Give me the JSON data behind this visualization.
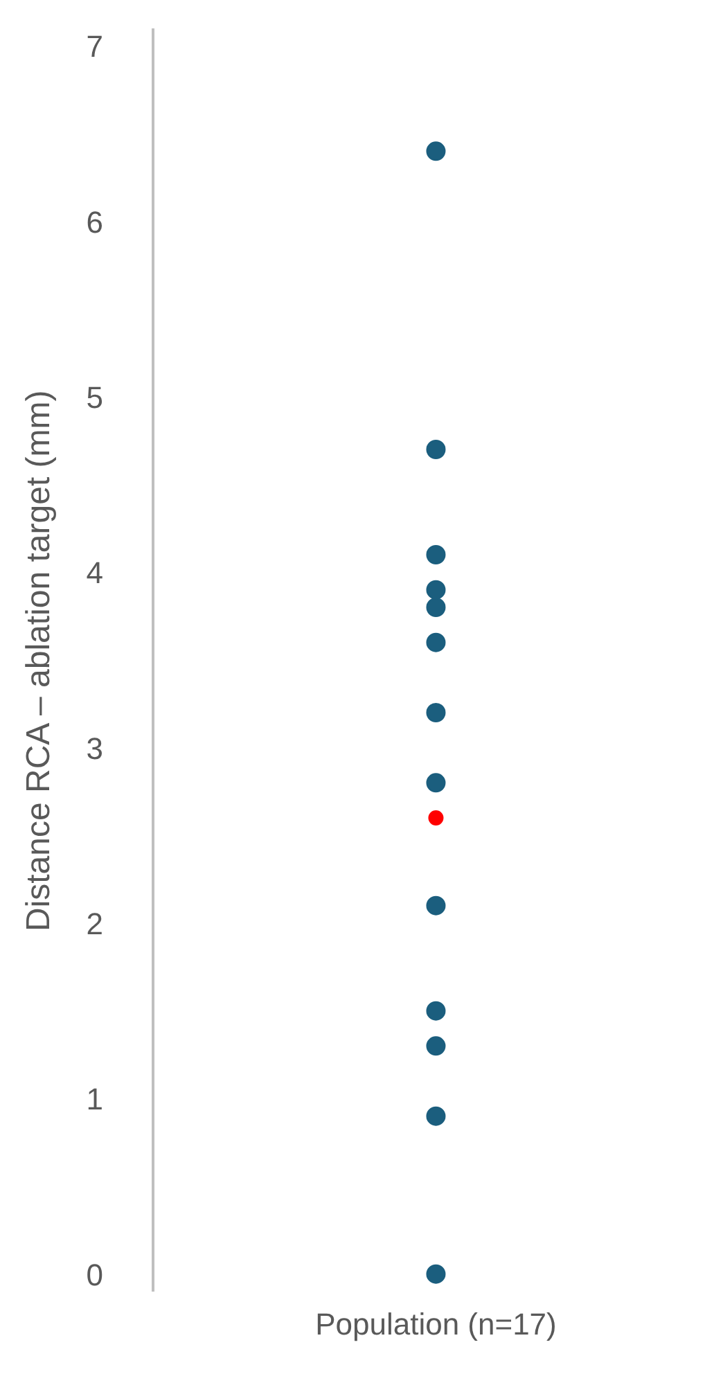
{
  "chart_data": {
    "type": "scatter",
    "ylabel": "Distance RCA – ablation target (mm)",
    "categories": [
      "Population (n=17)"
    ],
    "series": [
      {
        "color": "#1b5e7e",
        "x": [
          "Population (n=17)",
          "Population (n=17)",
          "Population (n=17)",
          "Population (n=17)",
          "Population (n=17)",
          "Population (n=17)",
          "Population (n=17)",
          "Population (n=17)",
          "Population (n=17)",
          "Population (n=17)",
          "Population (n=17)",
          "Population (n=17)",
          "Population (n=17)"
        ],
        "values": [
          6.4,
          4.7,
          4.1,
          3.9,
          3.8,
          3.6,
          3.2,
          2.8,
          2.1,
          1.5,
          1.3,
          0.9,
          0
        ]
      },
      {
        "color": "#ff0000",
        "x": [
          "Population (n=17)"
        ],
        "values": [
          2.6
        ]
      }
    ],
    "ylim": [
      -0.1,
      7.1
    ],
    "yticks": [
      0,
      1,
      2,
      3,
      4,
      5,
      6,
      7
    ],
    "grid": false,
    "marker": "circle"
  }
}
